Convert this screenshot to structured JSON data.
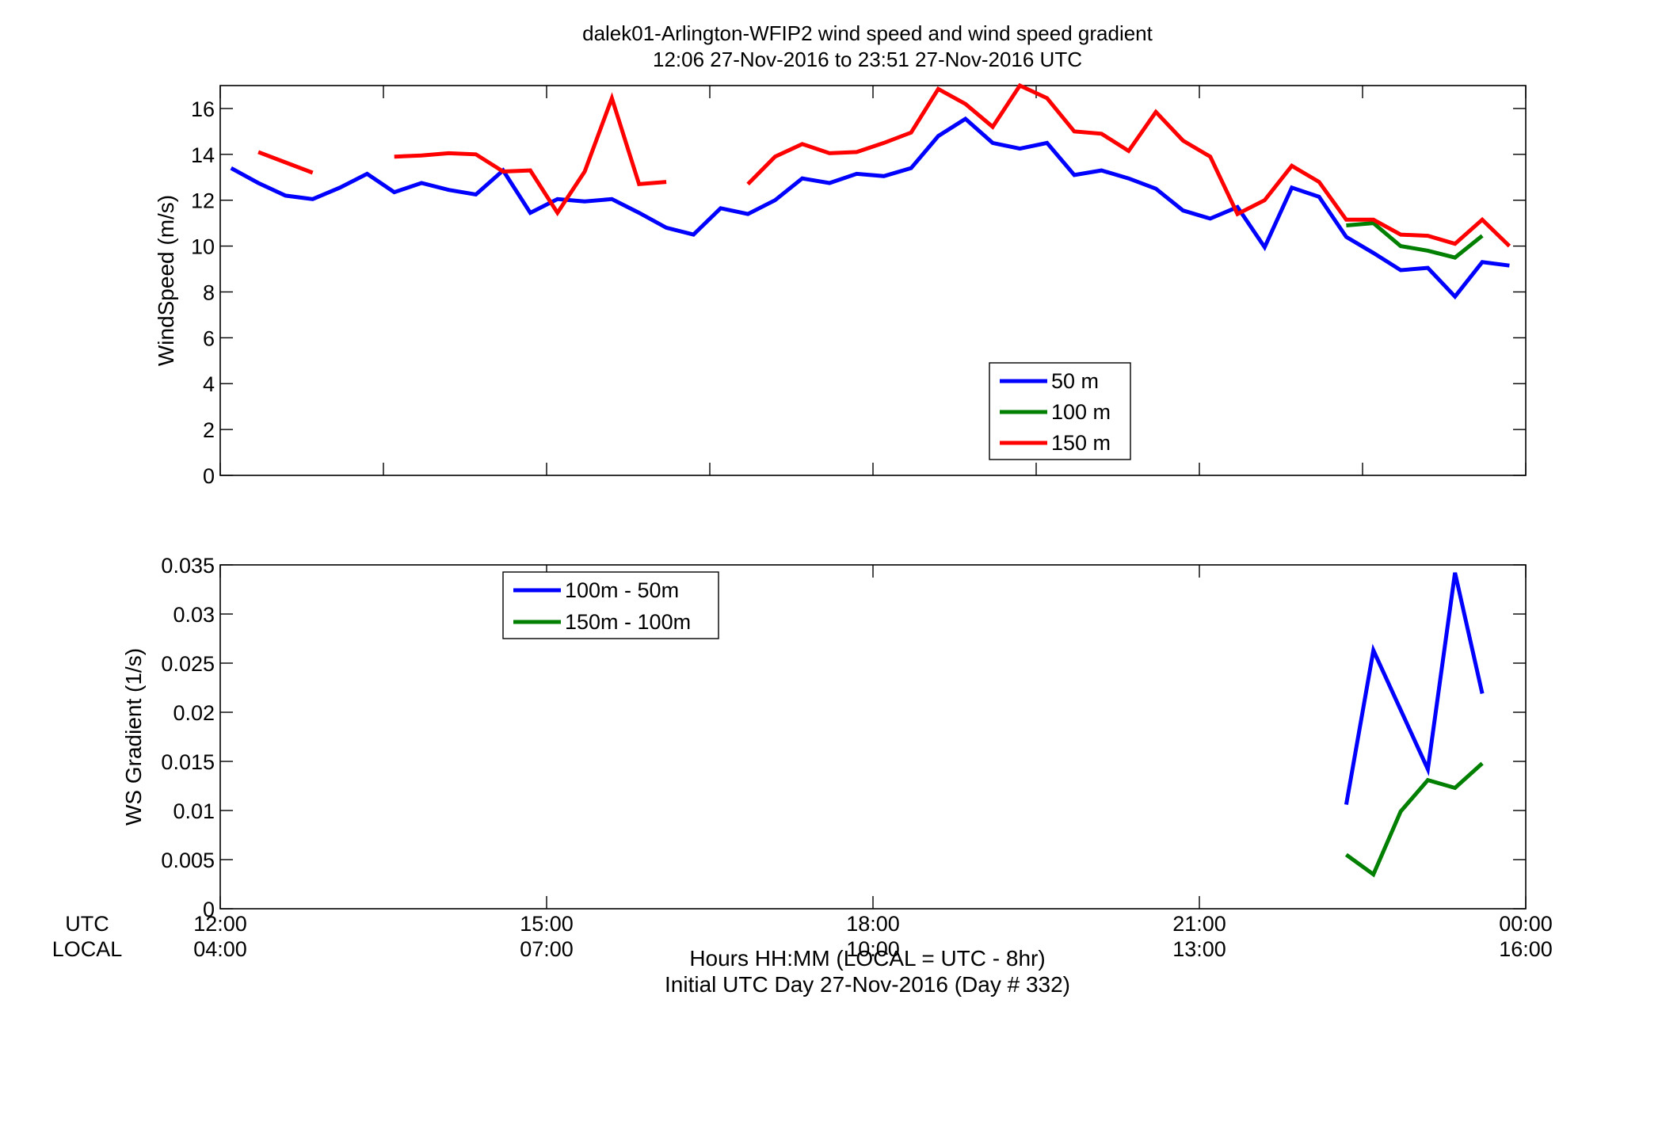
{
  "title": {
    "line1": "dalek01-Arlington-WFIP2  wind speed and wind speed gradient",
    "line2": "12:06 27-Nov-2016 to 23:51 27-Nov-2016  UTC"
  },
  "x_axis": {
    "row_label_utc": "UTC",
    "row_label_local": "LOCAL",
    "utc_ticks": [
      "12:00",
      "15:00",
      "18:00",
      "21:00",
      "00:00"
    ],
    "local_ticks": [
      "04:00",
      "07:00",
      "10:00",
      "13:00",
      "16:00"
    ],
    "xlabel_line1": "Hours HH:MM  (LOCAL = UTC - 8hr)",
    "xlabel_line2": "Initial UTC Day 27-Nov-2016 (Day # 332)"
  },
  "colors": {
    "blue": "#0000ff",
    "green": "#007f00",
    "red": "#ff0000"
  },
  "chart_data": [
    {
      "type": "line",
      "ylabel": "WindSpeed (m/s)",
      "xlim": [
        12,
        24
      ],
      "ylim": [
        0,
        17
      ],
      "yticks": [
        0,
        2,
        4,
        6,
        8,
        10,
        12,
        14,
        16
      ],
      "grid": false,
      "legend_position": "center-right",
      "series": [
        {
          "name": "50 m",
          "color": "#0000ff",
          "points": [
            [
              12.1,
              13.4
            ],
            [
              12.35,
              12.75
            ],
            [
              12.6,
              12.2
            ],
            [
              12.85,
              12.05
            ],
            [
              13.1,
              12.55
            ],
            [
              13.35,
              13.15
            ],
            [
              13.6,
              12.35
            ],
            [
              13.85,
              12.75
            ],
            [
              14.1,
              12.45
            ],
            [
              14.35,
              12.25
            ],
            [
              14.6,
              13.3
            ],
            [
              14.85,
              11.45
            ],
            [
              15.1,
              12.05
            ],
            [
              15.35,
              11.95
            ],
            [
              15.6,
              12.05
            ],
            [
              15.85,
              11.45
            ],
            [
              16.1,
              10.8
            ],
            [
              16.35,
              10.5
            ],
            [
              16.6,
              11.65
            ],
            [
              16.85,
              11.4
            ],
            [
              17.1,
              12.0
            ],
            [
              17.35,
              12.95
            ],
            [
              17.6,
              12.75
            ],
            [
              17.85,
              13.15
            ],
            [
              18.1,
              13.05
            ],
            [
              18.35,
              13.4
            ],
            [
              18.6,
              14.8
            ],
            [
              18.85,
              15.55
            ],
            [
              19.1,
              14.5
            ],
            [
              19.35,
              14.25
            ],
            [
              19.6,
              14.5
            ],
            [
              19.85,
              13.1
            ],
            [
              20.1,
              13.3
            ],
            [
              20.35,
              12.95
            ],
            [
              20.6,
              12.5
            ],
            [
              20.85,
              11.55
            ],
            [
              21.1,
              11.2
            ],
            [
              21.35,
              11.7
            ],
            [
              21.6,
              9.95
            ],
            [
              21.85,
              12.55
            ],
            [
              22.1,
              12.15
            ],
            [
              22.35,
              10.4
            ],
            [
              22.6,
              9.7
            ],
            [
              22.85,
              8.95
            ],
            [
              23.1,
              9.05
            ],
            [
              23.35,
              7.8
            ],
            [
              23.6,
              9.3
            ],
            [
              23.85,
              9.15
            ]
          ]
        },
        {
          "name": "100 m",
          "color": "#007f00",
          "points": [
            [
              22.35,
              10.9
            ],
            [
              22.6,
              11.0
            ],
            [
              22.85,
              10.0
            ],
            [
              23.1,
              9.8
            ],
            [
              23.35,
              9.5
            ],
            [
              23.6,
              10.45
            ]
          ]
        },
        {
          "name": "150 m",
          "color": "#ff0000",
          "segments": [
            [
              [
                12.35,
                14.1
              ],
              [
                12.6,
                13.65
              ],
              [
                12.85,
                13.2
              ]
            ],
            [
              [
                13.6,
                13.9
              ],
              [
                13.85,
                13.95
              ],
              [
                14.1,
                14.05
              ],
              [
                14.35,
                14.0
              ],
              [
                14.6,
                13.25
              ],
              [
                14.85,
                13.3
              ],
              [
                15.1,
                11.45
              ],
              [
                15.35,
                13.25
              ],
              [
                15.6,
                16.45
              ],
              [
                15.85,
                12.7
              ],
              [
                16.1,
                12.8
              ]
            ],
            [
              [
                16.85,
                12.7
              ],
              [
                17.1,
                13.9
              ],
              [
                17.35,
                14.45
              ],
              [
                17.6,
                14.05
              ],
              [
                17.85,
                14.1
              ],
              [
                18.1,
                14.5
              ],
              [
                18.35,
                14.95
              ],
              [
                18.6,
                16.85
              ],
              [
                18.85,
                16.2
              ],
              [
                19.1,
                15.2
              ],
              [
                19.35,
                17.0
              ],
              [
                19.6,
                16.45
              ],
              [
                19.85,
                15.0
              ],
              [
                20.1,
                14.9
              ],
              [
                20.35,
                14.15
              ],
              [
                20.6,
                15.85
              ],
              [
                20.85,
                14.6
              ],
              [
                21.1,
                13.9
              ],
              [
                21.35,
                11.4
              ],
              [
                21.6,
                12.0
              ],
              [
                21.85,
                13.5
              ],
              [
                22.1,
                12.8
              ],
              [
                22.35,
                11.15
              ],
              [
                22.6,
                11.15
              ],
              [
                22.85,
                10.5
              ],
              [
                23.1,
                10.45
              ],
              [
                23.35,
                10.1
              ],
              [
                23.6,
                11.15
              ],
              [
                23.85,
                10.0
              ]
            ]
          ]
        }
      ]
    },
    {
      "type": "line",
      "ylabel": "WS Gradient (1/s)",
      "xlim": [
        12,
        24
      ],
      "ylim": [
        0,
        0.035
      ],
      "yticks": [
        0,
        0.005,
        0.01,
        0.015,
        0.02,
        0.025,
        0.03,
        0.035
      ],
      "ytick_labels": [
        "0",
        "0.005",
        "0.01",
        "0.015",
        "0.02",
        "0.025",
        "0.03",
        "0.035"
      ],
      "grid": false,
      "legend_position": "top-left",
      "series": [
        {
          "name": "100m - 50m",
          "color": "#0000ff",
          "points": [
            [
              22.35,
              0.0106
            ],
            [
              22.6,
              0.0263
            ],
            [
              23.1,
              0.0142
            ],
            [
              23.35,
              0.0342
            ],
            [
              23.6,
              0.0219
            ]
          ]
        },
        {
          "name": "150m - 100m",
          "color": "#007f00",
          "points": [
            [
              22.35,
              0.0055
            ],
            [
              22.6,
              0.0035
            ],
            [
              22.85,
              0.0099
            ],
            [
              23.1,
              0.0131
            ],
            [
              23.35,
              0.0123
            ],
            [
              23.6,
              0.0148
            ]
          ]
        }
      ]
    }
  ]
}
